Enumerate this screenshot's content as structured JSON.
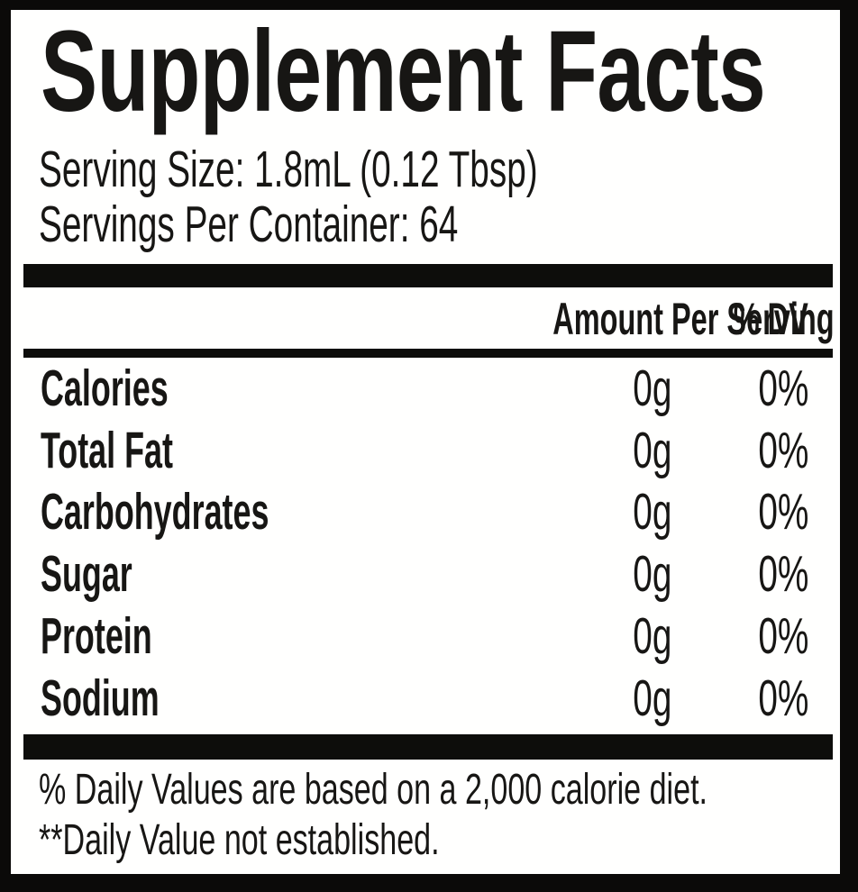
{
  "label": {
    "title": "Supplement Facts",
    "serving_size_line": "Serving Size: 1.8mL (0.12 Tbsp)",
    "servings_per_container_line": "Servings Per Container: 64",
    "columns": {
      "amount_header": "Amount Per Serving",
      "dv_header": "% DV"
    },
    "rows": [
      {
        "name": "Calories",
        "amount": "0g",
        "dv": "0%"
      },
      {
        "name": "Total Fat",
        "amount": "0g",
        "dv": "0%"
      },
      {
        "name": "Carbohydrates",
        "amount": "0g",
        "dv": "0%"
      },
      {
        "name": "Sugar",
        "amount": "0g",
        "dv": "0%"
      },
      {
        "name": "Protein",
        "amount": "0g",
        "dv": "0%"
      },
      {
        "name": "Sodium",
        "amount": "0g",
        "dv": "0%"
      }
    ],
    "footnotes": [
      "% Daily Values are based on a 2,000 calorie diet.",
      "**Daily Value not established."
    ],
    "colors": {
      "ink": "#171614",
      "panel_background": "#fffffe",
      "frame": "#0b0a09",
      "divider_bar": "#0d0d0b"
    }
  }
}
